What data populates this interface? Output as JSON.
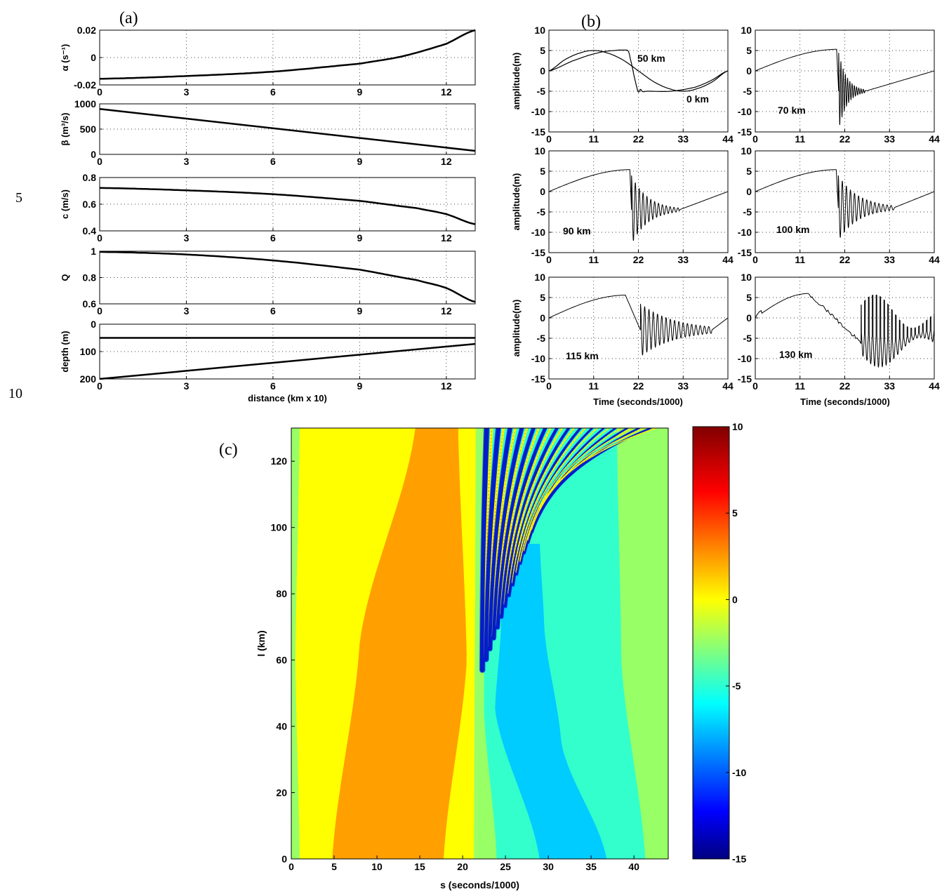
{
  "line_numbers": [
    "5",
    "10"
  ],
  "chart_data": [
    {
      "id": "a1",
      "panel_label": "(a)",
      "type": "line",
      "ylabel": "α (s⁻¹)",
      "xlim": [
        0,
        13
      ],
      "ylim": [
        -0.02,
        0.02
      ],
      "xticks": [
        0,
        3,
        6,
        9,
        12
      ],
      "yticks": [
        0.02,
        0,
        -0.02
      ],
      "ytick_labels": [
        "0.02",
        "0",
        "-0.02"
      ],
      "series": [
        {
          "x": [
            0,
            3,
            6,
            9,
            10.5,
            12,
            13
          ],
          "y": [
            -0.0155,
            -0.0135,
            -0.0103,
            -0.0045,
            0.001,
            0.01,
            0.02
          ]
        }
      ]
    },
    {
      "id": "a2",
      "type": "line",
      "ylabel": "β (m³/s)",
      "xlim": [
        0,
        13
      ],
      "ylim": [
        0,
        1000
      ],
      "xticks": [
        0,
        3,
        6,
        9,
        12
      ],
      "yticks": [
        1000,
        500,
        0
      ],
      "ytick_labels": [
        "1000",
        "500",
        "0"
      ],
      "series": [
        {
          "x": [
            0,
            13
          ],
          "y": [
            900,
            70
          ]
        }
      ]
    },
    {
      "id": "a3",
      "type": "line",
      "ylabel": "c (m/s)",
      "xlim": [
        0,
        13
      ],
      "ylim": [
        0.4,
        0.8
      ],
      "xticks": [
        0,
        3,
        6,
        9,
        12
      ],
      "yticks": [
        0.8,
        0.6,
        0.4
      ],
      "ytick_labels": [
        "0.8",
        "0.6",
        "0.4"
      ],
      "series": [
        {
          "x": [
            0,
            3,
            6,
            9,
            11,
            12,
            13
          ],
          "y": [
            0.722,
            0.704,
            0.675,
            0.625,
            0.57,
            0.525,
            0.45
          ]
        }
      ]
    },
    {
      "id": "a4",
      "type": "line",
      "ylabel": "Q",
      "xlim": [
        0,
        13
      ],
      "ylim": [
        0.6,
        1
      ],
      "xticks": [
        0,
        3,
        6,
        9,
        12
      ],
      "yticks": [
        1,
        0.8,
        0.6
      ],
      "ytick_labels": [
        "1",
        "0.8",
        "0.6"
      ],
      "series": [
        {
          "x": [
            0,
            3,
            6,
            9,
            11,
            12,
            13
          ],
          "y": [
            0.995,
            0.975,
            0.93,
            0.86,
            0.78,
            0.72,
            0.615
          ]
        }
      ]
    },
    {
      "id": "a5",
      "type": "line",
      "ylabel": "depth (m)",
      "xlabel": "distance (km x 10)",
      "xlim": [
        0,
        13
      ],
      "ylim": [
        0,
        200
      ],
      "y_reversed": true,
      "xticks": [
        0,
        3,
        6,
        9,
        12
      ],
      "yticks": [
        0,
        100,
        200
      ],
      "ytick_labels": [
        "0",
        "100",
        "200"
      ],
      "series": [
        {
          "x": [
            0,
            13
          ],
          "y": [
            50,
            50
          ]
        },
        {
          "x": [
            0,
            13
          ],
          "y": [
            200,
            72
          ]
        }
      ]
    },
    {
      "id": "b1",
      "panel_label": "(b)",
      "type": "line",
      "annotation": "",
      "ylabel": "amplitude(m)",
      "xlim": [
        0,
        44
      ],
      "ylim": [
        -15,
        10
      ],
      "xticks": [
        0,
        11,
        22,
        33,
        44
      ],
      "yticks": [
        10,
        5,
        0,
        -5,
        -10,
        -15
      ],
      "labels": [
        "50 km",
        "0 km"
      ],
      "series": [
        {
          "x": [
            0,
            4,
            8,
            11,
            14,
            18,
            22,
            26,
            30,
            33,
            36,
            40,
            44
          ],
          "y": [
            0,
            2.8,
            4.5,
            5.0,
            4.5,
            2.8,
            0,
            -2.8,
            -4.5,
            -5.0,
            -4.5,
            -2.8,
            0
          ]
        },
        {
          "x": [
            0,
            6,
            12,
            16,
            18.5,
            19.5,
            20,
            21,
            22,
            22.5,
            23,
            24,
            30,
            36,
            40,
            44
          ],
          "y": [
            0,
            2.5,
            4.4,
            5.0,
            5.1,
            4.9,
            3,
            -1.5,
            -5.2,
            -4.5,
            -5.1,
            -5,
            -5,
            -4,
            -2.3,
            0
          ]
        }
      ]
    },
    {
      "id": "b2",
      "type": "line",
      "annotation": "70 km",
      "ylabel": "",
      "xlim": [
        0,
        44
      ],
      "ylim": [
        -15,
        10
      ],
      "xticks": [
        0,
        11,
        22,
        33,
        44
      ],
      "yticks": [
        10,
        5,
        0,
        -5,
        -10,
        -15
      ],
      "shape": {
        "rise_end": 20.0,
        "peak": 5.3,
        "osc_start": 20.5,
        "osc_end": 27,
        "period": 0.55,
        "amp": 9.5,
        "base": -5,
        "decay": 0.5,
        "tail_end": 0
      }
    },
    {
      "id": "b3",
      "type": "line",
      "annotation": "90 km",
      "ylabel": "amplitude(m)",
      "xlim": [
        0,
        44
      ],
      "ylim": [
        -15,
        10
      ],
      "xticks": [
        0,
        11,
        22,
        33,
        44
      ],
      "yticks": [
        10,
        5,
        0,
        -5,
        -10,
        -15
      ],
      "shape": {
        "rise_end": 19.9,
        "peak": 5.4,
        "osc_start": 20.3,
        "osc_end": 32,
        "period": 0.95,
        "amp": 8.5,
        "base": -4.5,
        "decay": 0.25,
        "tail_end": 0
      }
    },
    {
      "id": "b4",
      "type": "line",
      "annotation": "100 km",
      "ylabel": "",
      "xlim": [
        0,
        44
      ],
      "ylim": [
        -15,
        10
      ],
      "xticks": [
        0,
        11,
        22,
        33,
        44
      ],
      "yticks": [
        10,
        5,
        0,
        -5,
        -10,
        -15
      ],
      "shape": {
        "rise_end": 19.9,
        "peak": 5.4,
        "osc_start": 20.4,
        "osc_end": 34,
        "period": 1.0,
        "amp": 8.0,
        "base": -4.0,
        "decay": 0.2,
        "tail_end": 0
      }
    },
    {
      "id": "b5",
      "type": "line",
      "annotation": "115 km",
      "ylabel": "amplitude(m)",
      "xlim": [
        0,
        44
      ],
      "ylim": [
        -15,
        10
      ],
      "xticks": [
        0,
        11,
        22,
        33,
        44
      ],
      "yticks": [
        10,
        5,
        0,
        -5,
        -10,
        -15
      ],
      "shape": {
        "rise_end": 18.8,
        "peak": 5.6,
        "osc_start": 22.5,
        "osc_end": 40,
        "period": 1.05,
        "amp": 6.5,
        "base": -3,
        "decay": 0.12,
        "tail_end": 0
      }
    },
    {
      "id": "b6",
      "type": "line",
      "annotation": "130 km",
      "ylabel": "",
      "xlim": [
        0,
        44
      ],
      "ylim": [
        -15,
        10
      ],
      "xticks": [
        0,
        11,
        22,
        33,
        44
      ],
      "yticks": [
        10,
        5,
        0,
        -5,
        -10,
        -15
      ],
      "shape": {
        "rise_end": 13,
        "peak": 6.0,
        "osc_start": 26,
        "osc_end": 44,
        "period": 0.95,
        "amp": 9.5,
        "base": -6,
        "decay": 0.03,
        "tail_end": 0,
        "spiky": true
      }
    },
    {
      "id": "b-xlabel",
      "xlabel": "Time (seconds/1000)"
    },
    {
      "id": "c",
      "panel_label": "(c)",
      "type": "heatmap",
      "xlabel": "s (seconds/1000)",
      "ylabel": "l (km)",
      "xlim": [
        0,
        44
      ],
      "ylim": [
        0,
        130
      ],
      "xticks": [
        0,
        5,
        10,
        15,
        20,
        25,
        30,
        35,
        40
      ],
      "yticks": [
        0,
        20,
        40,
        60,
        80,
        100,
        120
      ],
      "colorbar": {
        "ticks": [
          10,
          5,
          0,
          -5,
          -10,
          -15
        ],
        "range": [
          -15,
          10
        ]
      },
      "colors": {
        "green": "#99ff66",
        "yellow": "#ffff00",
        "orange": "#ff9f00",
        "teal": "#33ffcc",
        "cyan": "#00ccff",
        "blue": "#0033ff",
        "darkblue": "#000099"
      },
      "boundaries": [
        {
          "name": "green-yellow",
          "l": [
            0,
            60,
            130
          ],
          "s": [
            1.0,
            0.5,
            1.0
          ]
        },
        {
          "name": "yellow-orange",
          "l": [
            0,
            65,
            130
          ],
          "s": [
            4.8,
            8.0,
            14.5
          ]
        },
        {
          "name": "orange-yellow",
          "l": [
            0,
            60,
            130
          ],
          "s": [
            17.8,
            20.5,
            19.5
          ]
        },
        {
          "name": "yellow-green",
          "l": [
            0,
            130
          ],
          "s": [
            21.3,
            21.5
          ]
        },
        {
          "name": "green-teal",
          "l": [
            0,
            45,
            130
          ],
          "s": [
            24.0,
            22.5,
            23.0
          ]
        },
        {
          "name": "teal-cyan",
          "l": [
            0,
            45,
            70
          ],
          "s": [
            29.0,
            23.8,
            24.5
          ]
        },
        {
          "name": "cyan-teal",
          "l": [
            0,
            35,
            70,
            95
          ],
          "s": [
            36.8,
            31.5,
            29.5,
            29.0
          ]
        },
        {
          "name": "teal-green",
          "l": [
            0,
            60,
            130
          ],
          "s": [
            41.3,
            38.5,
            38.0
          ]
        }
      ],
      "ridges": {
        "l_start": 57,
        "s_start": 22.3,
        "count": 15,
        "spacing_top": 1.35,
        "spacing_bottom": 0.45
      }
    }
  ]
}
